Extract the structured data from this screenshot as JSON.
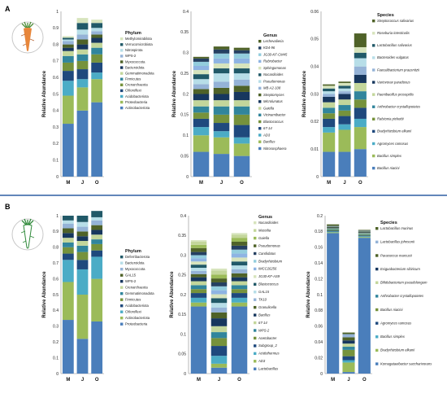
{
  "panels": [
    {
      "id": "A",
      "label": "A"
    },
    {
      "id": "B",
      "label": "B"
    }
  ],
  "chart_data": [
    {
      "panel": "A",
      "type": "bar",
      "stacked": true,
      "ylabel": "Relative Abundance",
      "ylim": [
        0,
        1
      ],
      "yticks": [
        "0",
        "0.1",
        "0.2",
        "0.3",
        "0.4",
        "0.5",
        "0.6",
        "0.7",
        "0.8",
        "0.9",
        "1"
      ],
      "categories": [
        "M",
        "J",
        "O"
      ],
      "legend_title": "Phylum",
      "legend_italic": false,
      "series": [
        {
          "name": "Actinobacteriota",
          "color": "#4a7ebb",
          "values": [
            0.32,
            0.4,
            0.45
          ]
        },
        {
          "name": "Proteobacteria",
          "color": "#9bbb59",
          "values": [
            0.17,
            0.14,
            0.14
          ]
        },
        {
          "name": "Acidobacteriota",
          "color": "#4bacc6",
          "values": [
            0.09,
            0.05,
            0.04
          ]
        },
        {
          "name": "Chloroflexi",
          "color": "#1f497d",
          "values": [
            0.06,
            0.06,
            0.06
          ]
        },
        {
          "name": "Crenarchaeota",
          "color": "#76923c",
          "values": [
            0.05,
            0.05,
            0.05
          ]
        },
        {
          "name": "Firmicutes",
          "color": "#31859c",
          "values": [
            0.04,
            0.04,
            0.04
          ]
        },
        {
          "name": "Gemmatimonadota",
          "color": "#c3d69b",
          "values": [
            0.03,
            0.03,
            0.03
          ]
        },
        {
          "name": "Bacteroidota",
          "color": "#17375e",
          "values": [
            0.02,
            0.03,
            0.03
          ]
        },
        {
          "name": "Myxococcota",
          "color": "#4f6228",
          "values": [
            0.02,
            0.03,
            0.02
          ]
        },
        {
          "name": "WPS-2",
          "color": "#95b3d7",
          "values": [
            0.02,
            0.03,
            0.02
          ]
        },
        {
          "name": "Nitrospirota",
          "color": "#b7dee8",
          "values": [
            0.01,
            0.03,
            0.02
          ]
        },
        {
          "name": "Verrucomicrobiota",
          "color": "#215968",
          "values": [
            0.01,
            0.04,
            0.03
          ]
        },
        {
          "name": "Methylomirabilota",
          "color": "#d7e4bd",
          "values": [
            0.01,
            0.03,
            0.02
          ]
        }
      ]
    },
    {
      "panel": "A",
      "type": "bar",
      "stacked": true,
      "ylabel": "Relative Abundance",
      "ylim": [
        0,
        0.4
      ],
      "yticks": [
        "0",
        "0.05",
        "0.1",
        "0.15",
        "0.2",
        "0.25",
        "0.3",
        "0.35",
        "0.4"
      ],
      "categories": [
        "M",
        "J",
        "O"
      ],
      "legend_title": "Genus",
      "legend_italic": true,
      "series": [
        {
          "name": "Nitrososphaera",
          "color": "#4a7ebb",
          "values": [
            0.06,
            0.055,
            0.05
          ]
        },
        {
          "name": "Bacillus",
          "color": "#9bbb59",
          "values": [
            0.04,
            0.04,
            0.03
          ]
        },
        {
          "name": "AD3",
          "color": "#4bacc6",
          "values": [
            0.02,
            0.015,
            0.015
          ]
        },
        {
          "name": "67-14",
          "color": "#1f497d",
          "values": [
            0.02,
            0.02,
            0.03
          ]
        },
        {
          "name": "Blastococcus",
          "color": "#76923c",
          "values": [
            0.015,
            0.02,
            0.025
          ]
        },
        {
          "name": "Vicinamibacter",
          "color": "#31859c",
          "values": [
            0.015,
            0.02,
            0.02
          ]
        },
        {
          "name": "Gaiella",
          "color": "#c3d69b",
          "values": [
            0.015,
            0.015,
            0.015
          ]
        },
        {
          "name": "Microlunatus",
          "color": "#17375e",
          "values": [
            0.015,
            0.015,
            0.02
          ]
        },
        {
          "name": "Streptomyces",
          "color": "#4f6228",
          "values": [
            0.012,
            0.015,
            0.015
          ]
        },
        {
          "name": "MB-A2-108",
          "color": "#95b3d7",
          "values": [
            0.012,
            0.015,
            0.015
          ]
        },
        {
          "name": "Pseudomonas",
          "color": "#b7dee8",
          "values": [
            0.012,
            0.02,
            0.015
          ]
        },
        {
          "name": "Nocardioides",
          "color": "#215968",
          "values": [
            0.012,
            0.012,
            0.012
          ]
        },
        {
          "name": "Sphingomonas",
          "color": "#d7e4bd",
          "values": [
            0.01,
            0.012,
            0.012
          ]
        },
        {
          "name": "Rubrobacter",
          "color": "#8eb4e3",
          "values": [
            0.01,
            0.012,
            0.012
          ]
        },
        {
          "name": "JG30-KF-CM45",
          "color": "#93cddd",
          "values": [
            0.01,
            0.012,
            0.012
          ]
        },
        {
          "name": "KD4-96",
          "color": "#254061",
          "values": [
            0.008,
            0.01,
            0.008
          ]
        },
        {
          "name": "Lechevalieria",
          "color": "#4f6228",
          "values": [
            0.004,
            0.007,
            0.006
          ]
        }
      ]
    },
    {
      "panel": "A",
      "type": "bar",
      "stacked": true,
      "ylabel": "Relative Abundance",
      "ylim": [
        0,
        0.06
      ],
      "yticks": [
        "0",
        "0.01",
        "0.02",
        "0.03",
        "0.04",
        "0.05",
        "0.06"
      ],
      "categories": [
        "M",
        "J",
        "O"
      ],
      "legend_title": "Species",
      "legend_italic": true,
      "series": [
        {
          "name": "Bacillus niacini",
          "color": "#4a7ebb",
          "values": [
            0.009,
            0.009,
            0.01
          ]
        },
        {
          "name": "Bacillus simplex",
          "color": "#9bbb59",
          "values": [
            0.007,
            0.008,
            0.008
          ]
        },
        {
          "name": "Agromyces ramosus",
          "color": "#4bacc6",
          "values": [
            0.002,
            0.002,
            0.003
          ]
        },
        {
          "name": "Bradyrhizobium elkanii",
          "color": "#1f497d",
          "values": [
            0.003,
            0.003,
            0.004
          ]
        },
        {
          "name": "Ralstonia pickettii",
          "color": "#76923c",
          "values": [
            0.002,
            0.002,
            0.003
          ]
        },
        {
          "name": "Arthrobacter crystallopoietes",
          "color": "#31859c",
          "values": [
            0.002,
            0.002,
            0.003
          ]
        },
        {
          "name": "Paenibacillus prosopidis",
          "color": "#c3d69b",
          "values": [
            0.002,
            0.002,
            0.003
          ]
        },
        {
          "name": "Variovorax paradoxus",
          "color": "#17375e",
          "values": [
            0.002,
            0.002,
            0.003
          ]
        },
        {
          "name": "Faecalibacterium prausnitzii",
          "color": "#95b3d7",
          "values": [
            0.001,
            0.001,
            0.003
          ]
        },
        {
          "name": "Bacteroides vulgatus",
          "color": "#b7dee8",
          "values": [
            0.001,
            0.001,
            0.003
          ]
        },
        {
          "name": "Lactobacillus salivarius",
          "color": "#215968",
          "values": [
            0.001,
            0.001,
            0.002
          ]
        },
        {
          "name": "Roseburia intestinalis",
          "color": "#d7e4bd",
          "values": [
            0.001,
            0.001,
            0.002
          ]
        },
        {
          "name": "Streptococcus salivarius",
          "color": "#4f6228",
          "values": [
            0.0005,
            0.0005,
            0.005
          ]
        }
      ]
    },
    {
      "panel": "B",
      "type": "bar",
      "stacked": true,
      "ylabel": "Relative Abundance",
      "ylim": [
        0,
        1
      ],
      "yticks": [
        "0",
        "0.1",
        "0.2",
        "0.3",
        "0.4",
        "0.5",
        "0.6",
        "0.7",
        "0.8",
        "0.9",
        "1"
      ],
      "categories": [
        "M",
        "J",
        "O"
      ],
      "legend_title": "Phylum",
      "legend_italic": false,
      "series": [
        {
          "name": "Proteobacteria",
          "color": "#4a7ebb",
          "values": [
            0.34,
            0.22,
            0.33
          ]
        },
        {
          "name": "Actinobacteriota",
          "color": "#9bbb59",
          "values": [
            0.24,
            0.28,
            0.27
          ]
        },
        {
          "name": "Chloroflexi",
          "color": "#4bacc6",
          "values": [
            0.14,
            0.16,
            0.14
          ]
        },
        {
          "name": "Acidobacteriota",
          "color": "#1f497d",
          "values": [
            0.04,
            0.06,
            0.04
          ]
        },
        {
          "name": "Firmicutes",
          "color": "#76923c",
          "values": [
            0.04,
            0.05,
            0.04
          ]
        },
        {
          "name": "Gemmatimonadota",
          "color": "#31859c",
          "values": [
            0.03,
            0.04,
            0.03
          ]
        },
        {
          "name": "Crenarchaeota",
          "color": "#c3d69b",
          "values": [
            0.03,
            0.03,
            0.03
          ]
        },
        {
          "name": "WPS-2",
          "color": "#17375e",
          "values": [
            0.03,
            0.03,
            0.03
          ]
        },
        {
          "name": "GAL15",
          "color": "#4f6228",
          "values": [
            0.03,
            0.03,
            0.03
          ]
        },
        {
          "name": "Myxococcota",
          "color": "#95b3d7",
          "values": [
            0.03,
            0.03,
            0.03
          ]
        },
        {
          "name": "Bacteroidota",
          "color": "#b7dee8",
          "values": [
            0.02,
            0.03,
            0.02
          ]
        },
        {
          "name": "Deferribacterota",
          "color": "#215968",
          "values": [
            0.03,
            0.04,
            0.04
          ]
        }
      ]
    },
    {
      "panel": "B",
      "type": "bar",
      "stacked": true,
      "ylabel": "Relative Abundance",
      "ylim": [
        0,
        0.4
      ],
      "yticks": [
        "0",
        "0.05",
        "0.1",
        "0.15",
        "0.2",
        "0.25",
        "0.3",
        "0.35",
        "0.4"
      ],
      "categories": [
        "M",
        "J",
        "O"
      ],
      "legend_title": "Genus",
      "legend_italic": true,
      "series": [
        {
          "name": "Lactobacillus",
          "color": "#4a7ebb",
          "values": [
            0.17,
            0.015,
            0.17
          ]
        },
        {
          "name": "AD3",
          "color": "#9bbb59",
          "values": [
            0.01,
            0.01,
            0.01
          ]
        },
        {
          "name": "Acidothermus",
          "color": "#4bacc6",
          "values": [
            0.012,
            0.02,
            0.012
          ]
        },
        {
          "name": "Subgroup_2",
          "color": "#1f497d",
          "values": [
            0.012,
            0.025,
            0.012
          ]
        },
        {
          "name": "Acetobacter",
          "color": "#76923c",
          "values": [
            0.01,
            0.02,
            0.01
          ]
        },
        {
          "name": "WPS-2",
          "color": "#31859c",
          "values": [
            0.01,
            0.015,
            0.01
          ]
        },
        {
          "name": "67-14",
          "color": "#c3d69b",
          "values": [
            0.01,
            0.015,
            0.01
          ]
        },
        {
          "name": "Bacillus",
          "color": "#17375e",
          "values": [
            0.01,
            0.02,
            0.01
          ]
        },
        {
          "name": "Granulicella",
          "color": "#4f6228",
          "values": [
            0.008,
            0.015,
            0.01
          ]
        },
        {
          "name": "TK10",
          "color": "#95b3d7",
          "values": [
            0.008,
            0.012,
            0.01
          ]
        },
        {
          "name": "GAL15",
          "color": "#b7dee8",
          "values": [
            0.008,
            0.012,
            0.01
          ]
        },
        {
          "name": "Blastococcus",
          "color": "#215968",
          "values": [
            0.008,
            0.012,
            0.01
          ]
        },
        {
          "name": "JG30-KF-AS9",
          "color": "#d7e4bd",
          "values": [
            0.008,
            0.01,
            0.01
          ]
        },
        {
          "name": "IMCC26256",
          "color": "#8eb4e3",
          "values": [
            0.008,
            0.01,
            0.01
          ]
        },
        {
          "name": "Bradyrhizobium",
          "color": "#93cddd",
          "values": [
            0.008,
            0.01,
            0.01
          ]
        },
        {
          "name": "Candidatus",
          "color": "#254061",
          "values": [
            0.008,
            0.01,
            0.01
          ]
        },
        {
          "name": "Pseudomonas",
          "color": "#4f6228",
          "values": [
            0.01,
            0.01,
            0.01
          ]
        },
        {
          "name": "Gaiella",
          "color": "#9bbb59",
          "values": [
            0.008,
            0.01,
            0.01
          ]
        },
        {
          "name": "Massilia",
          "color": "#c3d69b",
          "values": [
            0.008,
            0.01,
            0.008
          ]
        },
        {
          "name": "Nocardioides",
          "color": "#d7e4bd",
          "values": [
            0.004,
            0.005,
            0.004
          ]
        }
      ]
    },
    {
      "panel": "B",
      "type": "bar",
      "stacked": true,
      "ylabel": "Relative Abundance",
      "ylim": [
        0,
        0.2
      ],
      "yticks": [
        "0",
        "0.02",
        "0.04",
        "0.06",
        "0.08",
        "0.1",
        "0.12",
        "0.14",
        "0.16",
        "0.18",
        "0.2"
      ],
      "categories": [
        "M",
        "J",
        "O"
      ],
      "legend_title": "Species",
      "legend_italic": true,
      "series": [
        {
          "name": "Komagataeibacter saccharivorans",
          "color": "#4a7ebb",
          "values": [
            0.178,
            0.002,
            0.172
          ]
        },
        {
          "name": "Bradyrhizobium elkanii",
          "color": "#9bbb59",
          "values": [
            0.001,
            0.012,
            0.001
          ]
        },
        {
          "name": "Bacillus simplex",
          "color": "#4bacc6",
          "values": [
            0.001,
            0.003,
            0.001
          ]
        },
        {
          "name": "Agromyces ramosus",
          "color": "#1f497d",
          "values": [
            0.001,
            0.005,
            0.001
          ]
        },
        {
          "name": "Bacillus niacini",
          "color": "#76923c",
          "values": [
            0.001,
            0.008,
            0.001
          ]
        },
        {
          "name": "Arthrobacter crystallopoietes",
          "color": "#31859c",
          "values": [
            0.001,
            0.004,
            0.001
          ]
        },
        {
          "name": "Bifidobacterium pseudolongum",
          "color": "#c3d69b",
          "values": [
            0.001,
            0.004,
            0.001
          ]
        },
        {
          "name": "Exiguobacterium sibiricum",
          "color": "#17375e",
          "values": [
            0.001,
            0.004,
            0.001
          ]
        },
        {
          "name": "Paracoccus marcusii",
          "color": "#4f6228",
          "values": [
            0.001,
            0.004,
            0.001
          ]
        },
        {
          "name": "Lactobacillus johnsonii",
          "color": "#95b3d7",
          "values": [
            0.001,
            0.004,
            0.001
          ]
        },
        {
          "name": "Lactobacillus murinus",
          "color": "#4f6228",
          "values": [
            0.002,
            0.002,
            0.001
          ]
        }
      ]
    }
  ]
}
